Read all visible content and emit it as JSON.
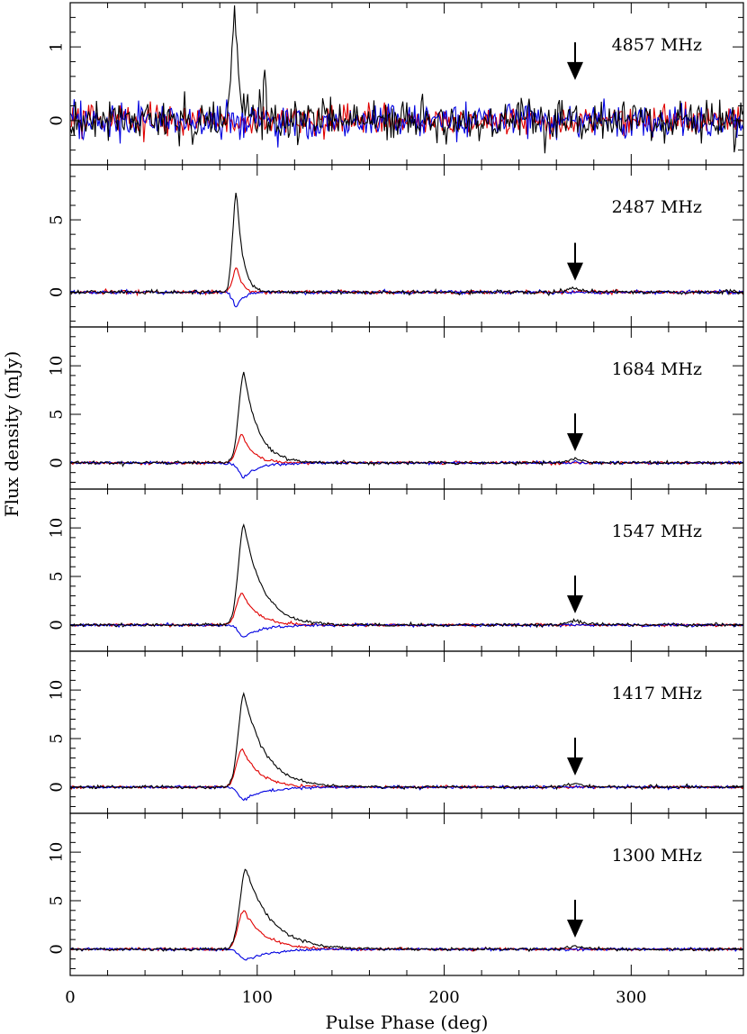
{
  "chart_data": {
    "type": "line",
    "xlabel": "Pulse Phase (deg)",
    "ylabel": "Flux density (mJy)",
    "xlim": [
      0,
      360
    ],
    "x_ticks": [
      0,
      100,
      200,
      300
    ],
    "x_tick_labels": [
      "0",
      "100",
      "200",
      "300"
    ],
    "series_colors": {
      "total": "#000000",
      "linear": "#e00000",
      "circular": "#0000e0"
    },
    "arrow_phase": 270,
    "panels": [
      {
        "frequency_label": "4857 MHz",
        "ylim": [
          -0.6,
          1.6
        ],
        "y_ticks": [
          0,
          1
        ],
        "y_tick_labels": [
          "0",
          "1"
        ],
        "total": {
          "baseline": 0,
          "peak": 1.5,
          "peak_phase": 88,
          "noise": 0.14
        },
        "linear": {
          "baseline": 0,
          "peak": 0.0,
          "peak_phase": 88,
          "noise": 0.1
        },
        "circular": {
          "baseline": 0,
          "peak": 0.0,
          "peak_phase": 88,
          "noise": 0.12
        },
        "arrow_tip_value": 0.55
      },
      {
        "frequency_label": "2487 MHz",
        "ylim": [
          -2.4,
          8.8
        ],
        "y_ticks": [
          0,
          5
        ],
        "y_tick_labels": [
          "0",
          "5"
        ],
        "total": {
          "baseline": 0,
          "peak": 7.1,
          "peak_phase": 89,
          "noise": 0.07
        },
        "linear": {
          "baseline": 0,
          "peak": 1.8,
          "peak_phase": 89,
          "noise": 0.06
        },
        "circular": {
          "baseline": 0,
          "peak": -1.0,
          "peak_phase": 89,
          "noise": 0.06
        },
        "arrow_tip_value": 0.8
      },
      {
        "frequency_label": "1684 MHz",
        "ylim": [
          -2.7,
          14.0
        ],
        "y_ticks": [
          0,
          5,
          10
        ],
        "y_tick_labels": [
          "0",
          "5",
          "10"
        ],
        "total": {
          "baseline": 0,
          "peak": 9.3,
          "peak_phase": 93,
          "noise": 0.08
        },
        "linear": {
          "baseline": 0,
          "peak": 2.9,
          "peak_phase": 92,
          "noise": 0.07
        },
        "circular": {
          "baseline": 0,
          "peak": -1.5,
          "peak_phase": 93,
          "noise": 0.07
        },
        "arrow_tip_value": 1.2
      },
      {
        "frequency_label": "1547 MHz",
        "ylim": [
          -2.7,
          14.0
        ],
        "y_ticks": [
          0,
          5,
          10
        ],
        "y_tick_labels": [
          "0",
          "5",
          "10"
        ],
        "total": {
          "baseline": 0,
          "peak": 10.3,
          "peak_phase": 93,
          "noise": 0.08
        },
        "linear": {
          "baseline": 0,
          "peak": 3.3,
          "peak_phase": 92,
          "noise": 0.07
        },
        "circular": {
          "baseline": 0,
          "peak": -1.2,
          "peak_phase": 93,
          "noise": 0.07
        },
        "arrow_tip_value": 1.2
      },
      {
        "frequency_label": "1417 MHz",
        "ylim": [
          -2.7,
          14.0
        ],
        "y_ticks": [
          0,
          5,
          10
        ],
        "y_tick_labels": [
          "0",
          "5",
          "10"
        ],
        "total": {
          "baseline": 0,
          "peak": 9.6,
          "peak_phase": 93,
          "noise": 0.08
        },
        "linear": {
          "baseline": 0,
          "peak": 4.0,
          "peak_phase": 92,
          "noise": 0.07
        },
        "circular": {
          "baseline": 0,
          "peak": -1.3,
          "peak_phase": 93,
          "noise": 0.07
        },
        "arrow_tip_value": 1.2
      },
      {
        "frequency_label": "1300 MHz",
        "ylim": [
          -2.7,
          14.0
        ],
        "y_ticks": [
          0,
          5,
          10
        ],
        "y_tick_labels": [
          "0",
          "5",
          "10"
        ],
        "total": {
          "baseline": 0,
          "peak": 8.3,
          "peak_phase": 94,
          "noise": 0.08
        },
        "linear": {
          "baseline": 0,
          "peak": 4.0,
          "peak_phase": 93,
          "noise": 0.07
        },
        "circular": {
          "baseline": 0,
          "peak": -1.1,
          "peak_phase": 94,
          "noise": 0.07
        },
        "arrow_tip_value": 1.2
      }
    ]
  }
}
